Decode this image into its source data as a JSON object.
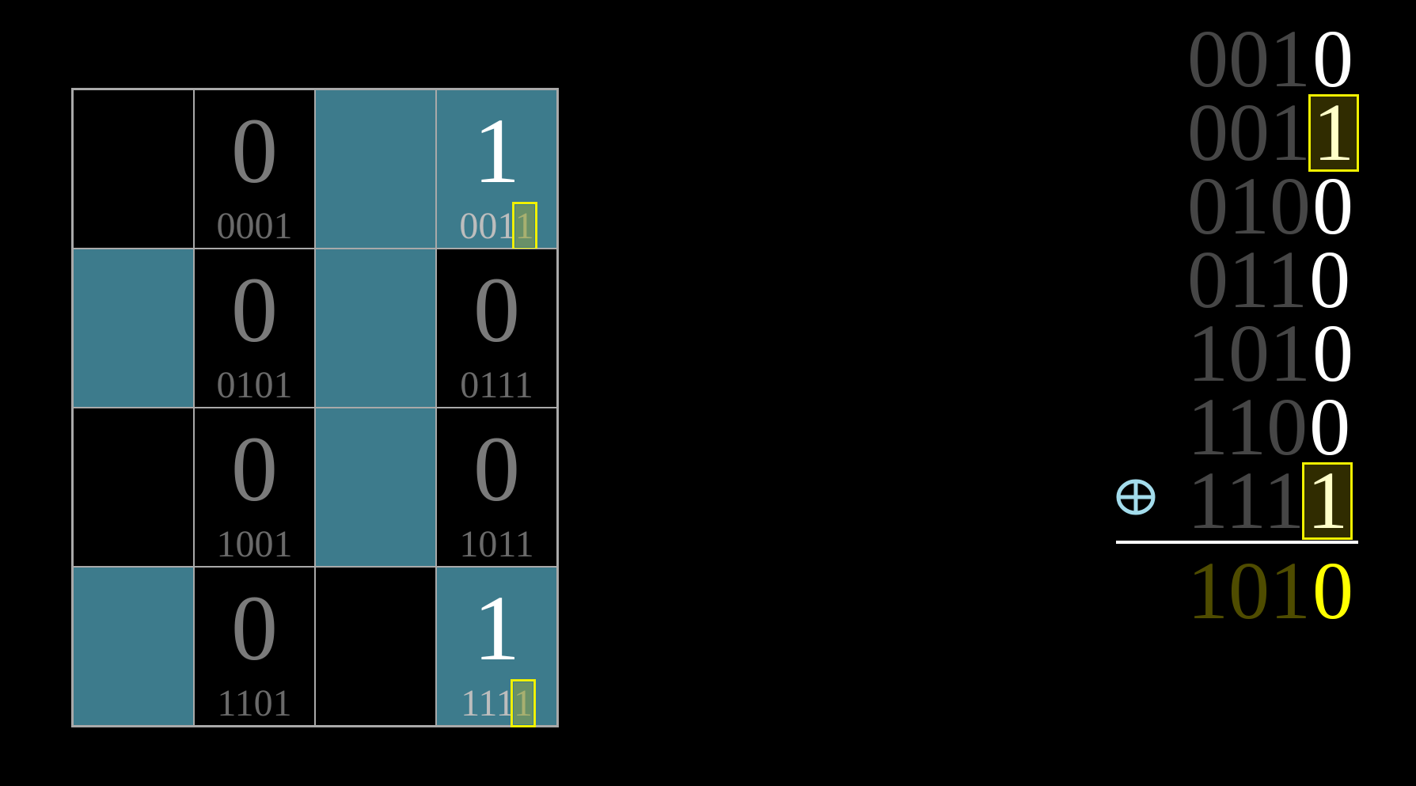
{
  "colors": {
    "teal": "#3d7b8c",
    "highlight": "#f0f000",
    "result": "#ffff00",
    "xor_symbol": "#a3dcec"
  },
  "grid": {
    "cells": [
      {
        "filled": false,
        "bit": "",
        "label": ""
      },
      {
        "filled": false,
        "bit": "0",
        "label": "0001"
      },
      {
        "filled": true,
        "bit": "",
        "label": ""
      },
      {
        "filled": true,
        "bit": "1",
        "label": "0011",
        "highlight_last": true
      },
      {
        "filled": true,
        "bit": "",
        "label": ""
      },
      {
        "filled": false,
        "bit": "0",
        "label": "0101"
      },
      {
        "filled": true,
        "bit": "",
        "label": ""
      },
      {
        "filled": false,
        "bit": "0",
        "label": "0111"
      },
      {
        "filled": false,
        "bit": "",
        "label": ""
      },
      {
        "filled": false,
        "bit": "0",
        "label": "1001"
      },
      {
        "filled": true,
        "bit": "",
        "label": ""
      },
      {
        "filled": false,
        "bit": "0",
        "label": "1011"
      },
      {
        "filled": true,
        "bit": "",
        "label": ""
      },
      {
        "filled": false,
        "bit": "0",
        "label": "1101"
      },
      {
        "filled": false,
        "bit": "",
        "label": ""
      },
      {
        "filled": true,
        "bit": "1",
        "label": "1111",
        "highlight_last": true
      }
    ]
  },
  "xor_sum": {
    "operator": "xor-circle-plus-icon",
    "rows": [
      {
        "prefix": "001",
        "last": "0",
        "boxed": false
      },
      {
        "prefix": "001",
        "last": "1",
        "boxed": true
      },
      {
        "prefix": "010",
        "last": "0",
        "boxed": false
      },
      {
        "prefix": "011",
        "last": "0",
        "boxed": false
      },
      {
        "prefix": "101",
        "last": "0",
        "boxed": false
      },
      {
        "prefix": "110",
        "last": "0",
        "boxed": false
      },
      {
        "prefix": "111",
        "last": "1",
        "boxed": true
      }
    ],
    "result": {
      "prefix": "101",
      "last": "0"
    }
  }
}
